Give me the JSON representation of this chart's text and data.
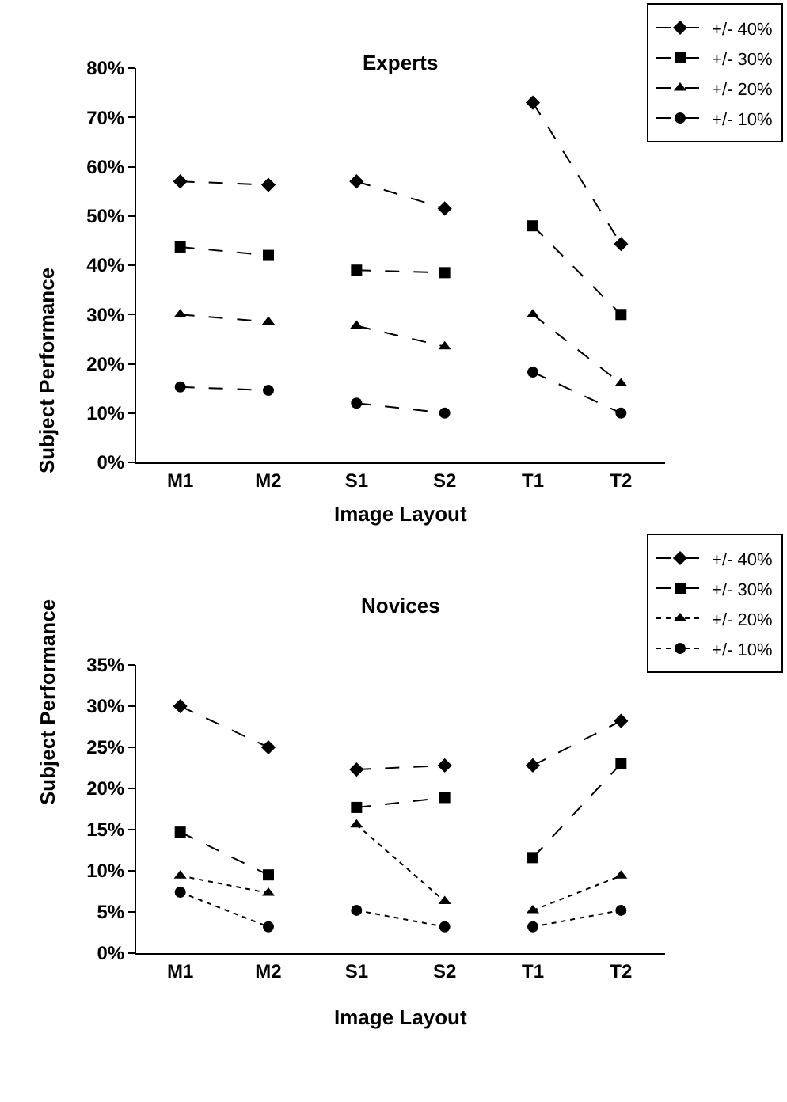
{
  "chart_data": [
    {
      "type": "line",
      "title": "Experts",
      "xlabel": "Image Layout",
      "ylabel": "Subject Performance",
      "categories": [
        "M1",
        "M2",
        "S1",
        "S2",
        "T1",
        "T2"
      ],
      "ylim": [
        0,
        80
      ],
      "yticks": [
        {
          "value": 0,
          "label": "0%"
        },
        {
          "value": 10,
          "label": "10%"
        },
        {
          "value": 20,
          "label": "20%"
        },
        {
          "value": 30,
          "label": "30%"
        },
        {
          "value": 40,
          "label": "40%"
        },
        {
          "value": 50,
          "label": "50%"
        },
        {
          "value": 60,
          "label": "60%"
        },
        {
          "value": 70,
          "label": "70%"
        },
        {
          "value": 80,
          "label": "80%"
        }
      ],
      "grid": false,
      "legend": "top right",
      "series": [
        {
          "name": "+/- 40%",
          "color": "#000000",
          "marker": "diamond",
          "line_style": "dashed",
          "values": [
            57,
            56.3,
            57,
            51.5,
            73,
            44.3
          ]
        },
        {
          "name": "+/- 30%",
          "color": "#000000",
          "marker": "square",
          "line_style": "dashed",
          "values": [
            43.7,
            42,
            39,
            38.5,
            48,
            30
          ]
        },
        {
          "name": "+/- 20%",
          "color": "#000000",
          "marker": "triangle",
          "line_style": "dashed",
          "values": [
            30,
            28.5,
            27.7,
            23.5,
            30,
            16
          ]
        },
        {
          "name": "+/- 10%",
          "color": "#000000",
          "marker": "circle",
          "line_style": "dashed",
          "values": [
            15.3,
            14.6,
            12,
            10,
            18.3,
            10
          ]
        }
      ]
    },
    {
      "type": "line",
      "title": "Novices",
      "xlabel": "Image Layout",
      "ylabel": "Subject Performance",
      "categories": [
        "M1",
        "M2",
        "S1",
        "S2",
        "T1",
        "T2"
      ],
      "ylim": [
        0,
        35
      ],
      "yticks": [
        {
          "value": 0,
          "label": "0%"
        },
        {
          "value": 5,
          "label": "5%"
        },
        {
          "value": 10,
          "label": "10%"
        },
        {
          "value": 15,
          "label": "15%"
        },
        {
          "value": 20,
          "label": "20%"
        },
        {
          "value": 25,
          "label": "25%"
        },
        {
          "value": 30,
          "label": "30%"
        },
        {
          "value": 35,
          "label": "35%"
        }
      ],
      "grid": false,
      "legend": "top right",
      "series": [
        {
          "name": "+/- 40%",
          "color": "#000000",
          "marker": "diamond",
          "line_style": "dashed",
          "values": [
            30,
            25,
            22.3,
            22.8,
            22.8,
            28.2
          ]
        },
        {
          "name": "+/- 30%",
          "color": "#000000",
          "marker": "square",
          "line_style": "dashed",
          "values": [
            14.7,
            9.5,
            17.7,
            18.9,
            11.6,
            23
          ]
        },
        {
          "name": "+/- 20%",
          "color": "#000000",
          "marker": "triangle",
          "line_style": "dotted",
          "values": [
            9.4,
            7.3,
            15.6,
            6.3,
            5.2,
            9.4
          ]
        },
        {
          "name": "+/- 10%",
          "color": "#000000",
          "marker": "circle",
          "line_style": "dotted",
          "values": [
            7.4,
            3.2,
            5.2,
            3.2,
            3.2,
            5.2
          ]
        }
      ]
    }
  ]
}
